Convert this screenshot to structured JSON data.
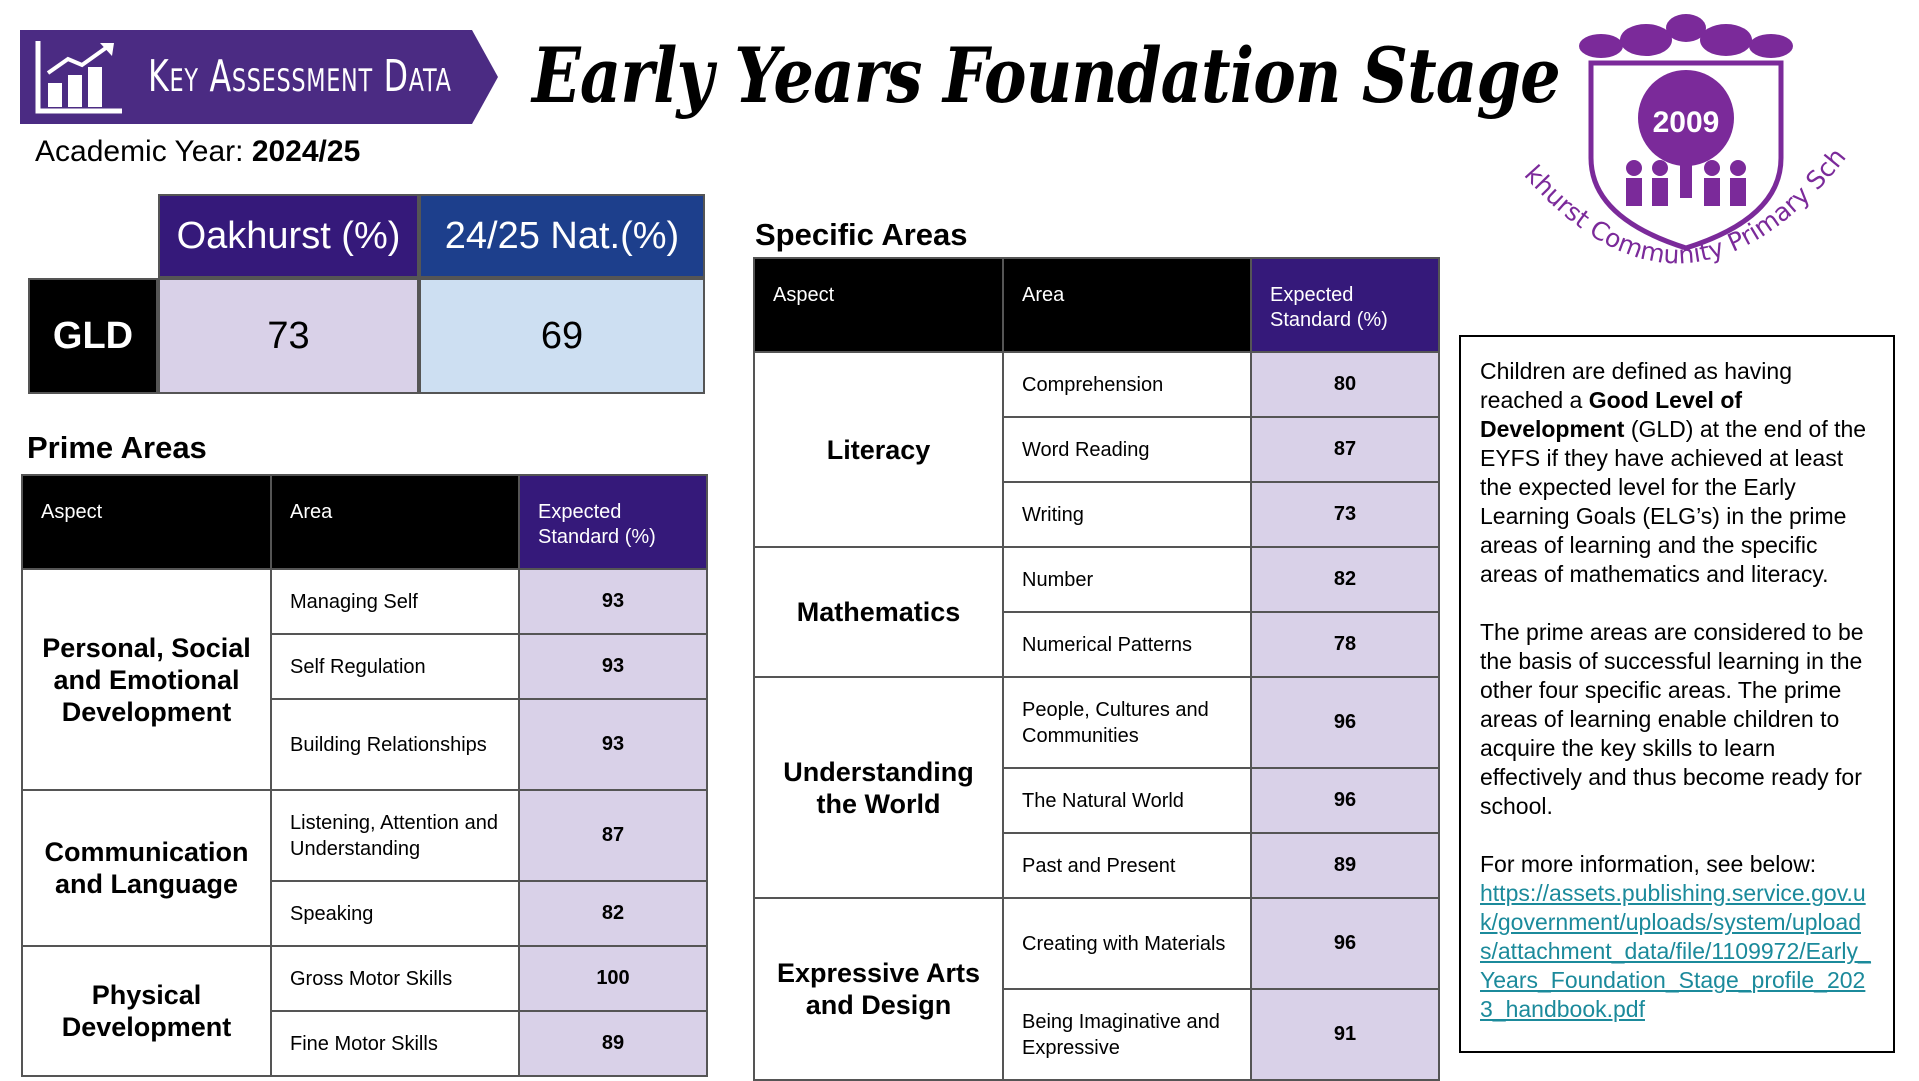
{
  "banner": {
    "title": "Key Assessment Data",
    "icon": "bar-chart-icon"
  },
  "title": "Early Years Foundation Stage",
  "academic_year": {
    "label": "Academic Year:",
    "value": "2024/25"
  },
  "gld_table": {
    "col_oakhurst": "Oakhurst (%)",
    "col_national": "24/25 Nat.(%)",
    "row_label": "GLD",
    "oakhurst_value": "73",
    "national_value": "69"
  },
  "prime_areas": {
    "title": "Prime Areas",
    "headers": {
      "aspect": "Aspect",
      "area": "Area",
      "expected_1": "Expected",
      "expected_2": "Standard (%)"
    },
    "aspects": [
      {
        "name": "Personal, Social and Emotional Development",
        "areas": [
          {
            "area": "Managing Self",
            "value": "93"
          },
          {
            "area": "Self Regulation",
            "value": "93"
          },
          {
            "area": "Building Relationships",
            "value": "93"
          }
        ]
      },
      {
        "name": "Communication and Language",
        "areas": [
          {
            "area": "Listening, Attention and Understanding",
            "value": "87"
          },
          {
            "area": "Speaking",
            "value": "82"
          }
        ]
      },
      {
        "name": "Physical Development",
        "areas": [
          {
            "area": "Gross Motor Skills",
            "value": "100"
          },
          {
            "area": "Fine Motor Skills",
            "value": "89"
          }
        ]
      }
    ]
  },
  "specific_areas": {
    "title": "Specific Areas",
    "headers": {
      "aspect": "Aspect",
      "area": "Area",
      "expected_1": "Expected",
      "expected_2": "Standard (%)"
    },
    "aspects": [
      {
        "name": "Literacy",
        "areas": [
          {
            "area": "Comprehension",
            "value": "80"
          },
          {
            "area": "Word Reading",
            "value": "87"
          },
          {
            "area": "Writing",
            "value": "73"
          }
        ]
      },
      {
        "name": "Mathematics",
        "areas": [
          {
            "area": "Number",
            "value": "82"
          },
          {
            "area": "Numerical Patterns",
            "value": "78"
          }
        ]
      },
      {
        "name": "Understanding the World",
        "areas": [
          {
            "area": "People, Cultures and Communities",
            "value": "96"
          },
          {
            "area": "The Natural World",
            "value": "96"
          },
          {
            "area": "Past and Present",
            "value": "89"
          }
        ]
      },
      {
        "name": "Expressive Arts and Design",
        "areas": [
          {
            "area": "Creating with Materials",
            "value": "96"
          },
          {
            "area": "Being Imaginative and Expressive",
            "value": "91"
          }
        ]
      }
    ]
  },
  "info": {
    "p1_a": "Children are defined as having reached a ",
    "p1_bold": "Good Level of Development",
    "p1_b": " (GLD) at the end of the EYFS if they have achieved at least the expected level for the Early Learning Goals (ELG’s) in the prime areas of learning and the specific areas of mathematics and literacy.",
    "p2": "The prime areas are considered to be the basis of successful learning in the other four specific areas. The prime areas of learning enable children to acquire the key skills to learn effectively and thus become ready for school.",
    "p3": "For more information, see below:",
    "link": "https://assets.publishing.service.gov.uk/government/uploads/system/uploads/attachment_data/file/1109972/Early_Years_Foundation_Stage_profile_2023_handbook.pdf"
  },
  "logo": {
    "year": "2009",
    "school_name": "Oakhurst Community Primary School",
    "color": "#7b2a9a"
  },
  "colors": {
    "purple": "#35197a",
    "banner_purple": "#4b2b83",
    "nat_blue": "#1d3f8c",
    "lavender": "#d9d1e8",
    "light_blue": "#cddff2",
    "link": "#1b8a9b"
  }
}
